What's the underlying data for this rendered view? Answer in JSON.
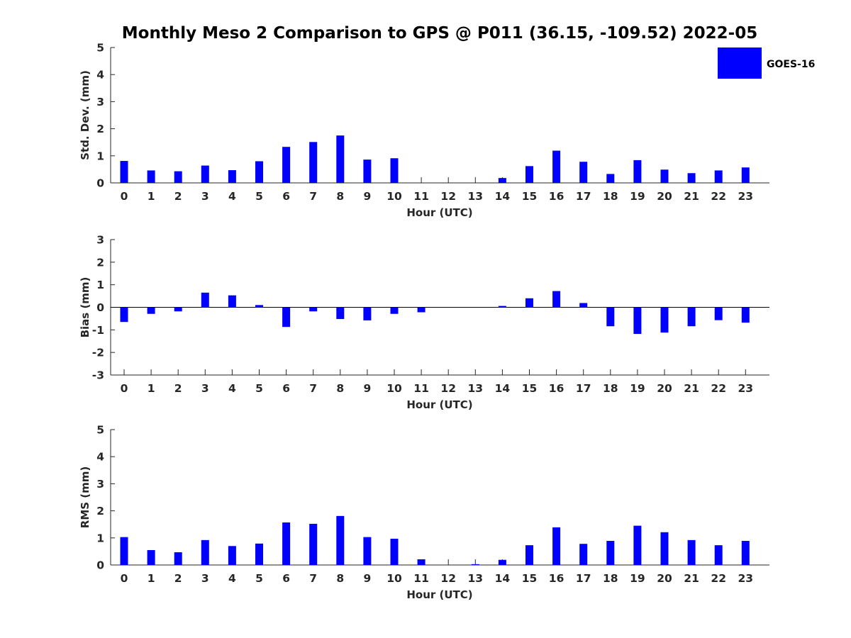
{
  "figure": {
    "title": "Monthly Meso 2 Comparison to GPS @ P011 (36.15, -109.52) 2022-05"
  },
  "legend": {
    "label": "GOES-16",
    "color": "#0000ff",
    "placement": "top-right"
  },
  "chart_data": [
    {
      "type": "bar",
      "name": "std-dev",
      "title": "Monthly Meso 2 Comparison to GPS @ P011 (36.15, -109.52) 2022-05",
      "xlabel": "Hour (UTC)",
      "ylabel": "Std. Dev. (mm)",
      "ylim": [
        0,
        5
      ],
      "yticks": [
        "0",
        "1",
        "2",
        "3",
        "4",
        "5"
      ],
      "categories": [
        "0",
        "1",
        "2",
        "3",
        "4",
        "5",
        "6",
        "7",
        "8",
        "9",
        "10",
        "11",
        "12",
        "13",
        "14",
        "15",
        "16",
        "17",
        "18",
        "19",
        "20",
        "21",
        "22",
        "23"
      ],
      "values": [
        0.81,
        0.46,
        0.43,
        0.64,
        0.47,
        0.8,
        1.33,
        1.51,
        1.75,
        0.86,
        0.91,
        0,
        0,
        0,
        0.18,
        0.62,
        1.19,
        0.78,
        0.33,
        0.84,
        0.49,
        0.36,
        0.46,
        0.57
      ],
      "color": "#0000ff",
      "grid": false
    },
    {
      "type": "bar",
      "name": "bias",
      "xlabel": "Hour (UTC)",
      "ylabel": "Bias (mm)",
      "ylim": [
        -3,
        3
      ],
      "yticks": [
        "-3",
        "-2",
        "-1",
        "0",
        "1",
        "2",
        "3"
      ],
      "categories": [
        "0",
        "1",
        "2",
        "3",
        "4",
        "5",
        "6",
        "7",
        "8",
        "9",
        "10",
        "11",
        "12",
        "13",
        "14",
        "15",
        "16",
        "17",
        "18",
        "19",
        "20",
        "21",
        "22",
        "23"
      ],
      "values": [
        -0.65,
        -0.29,
        -0.18,
        0.65,
        0.53,
        0.1,
        -0.87,
        -0.18,
        -0.52,
        -0.58,
        -0.29,
        -0.22,
        0,
        0,
        0.06,
        0.4,
        0.72,
        0.19,
        -0.84,
        -1.18,
        -1.12,
        -0.84,
        -0.57,
        -0.68
      ],
      "color": "#0000ff",
      "grid": false
    },
    {
      "type": "bar",
      "name": "rms",
      "xlabel": "Hour (UTC)",
      "ylabel": "RMS (mm)",
      "ylim": [
        0,
        5
      ],
      "yticks": [
        "0",
        "1",
        "2",
        "3",
        "4",
        "5"
      ],
      "categories": [
        "0",
        "1",
        "2",
        "3",
        "4",
        "5",
        "6",
        "7",
        "8",
        "9",
        "10",
        "11",
        "12",
        "13",
        "14",
        "15",
        "16",
        "17",
        "18",
        "19",
        "20",
        "21",
        "22",
        "23"
      ],
      "values": [
        1.03,
        0.55,
        0.47,
        0.92,
        0.7,
        0.79,
        1.57,
        1.52,
        1.81,
        1.03,
        0.97,
        0.21,
        0,
        0.03,
        0.19,
        0.73,
        1.39,
        0.78,
        0.89,
        1.45,
        1.21,
        0.92,
        0.73,
        0.89
      ],
      "color": "#0000ff",
      "grid": false
    }
  ]
}
